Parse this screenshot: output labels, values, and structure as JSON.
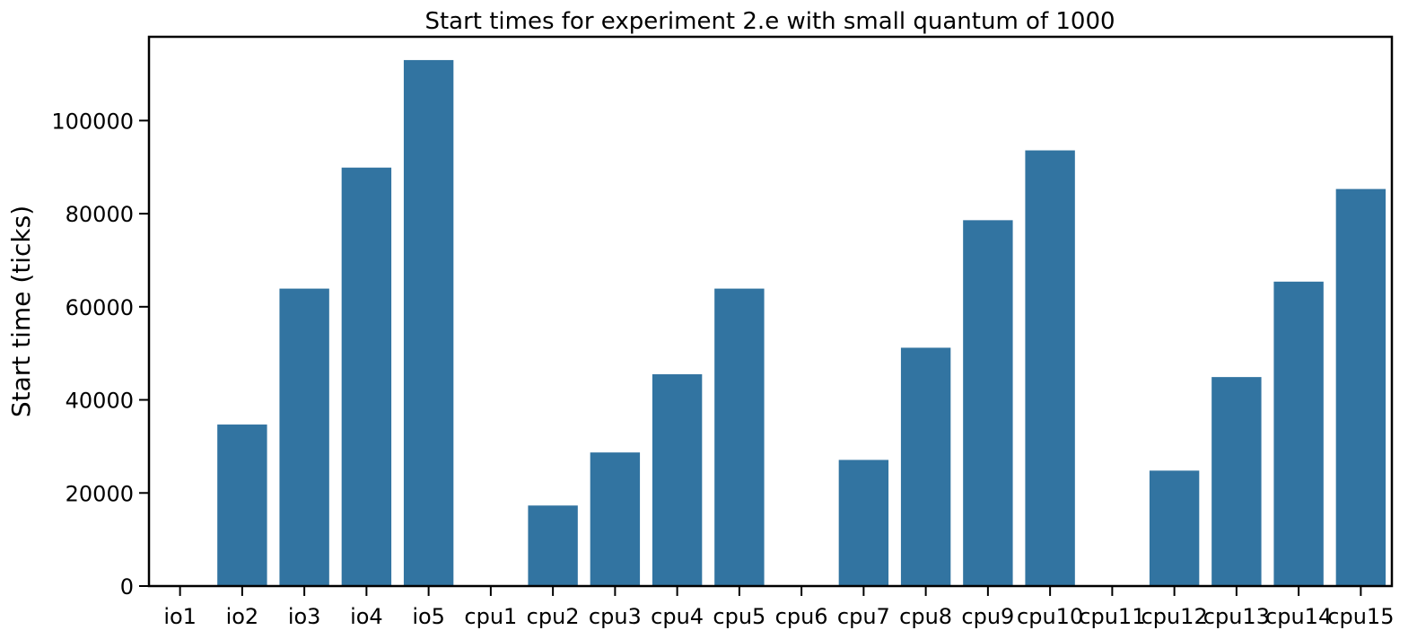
{
  "chart_data": {
    "type": "bar",
    "title": "Start times for experiment 2.e with small quantum of 1000",
    "xlabel": "",
    "ylabel": "Start time (ticks)",
    "ylim": [
      0,
      118000
    ],
    "yticks": [
      0,
      20000,
      40000,
      60000,
      80000,
      100000
    ],
    "grid": false,
    "color": "#3274a1",
    "categories": [
      "io1",
      "io2",
      "io3",
      "io4",
      "io5",
      "cpu1",
      "cpu2",
      "cpu3",
      "cpu4",
      "cpu5",
      "cpu6",
      "cpu7",
      "cpu8",
      "cpu9",
      "cpu10",
      "cpu11",
      "cpu12",
      "cpu13",
      "cpu14",
      "cpu15"
    ],
    "values": [
      0,
      34700,
      63900,
      89900,
      113000,
      0,
      17300,
      28700,
      45500,
      63900,
      0,
      27100,
      51200,
      78600,
      93600,
      0,
      24800,
      44900,
      65400,
      85300
    ]
  }
}
